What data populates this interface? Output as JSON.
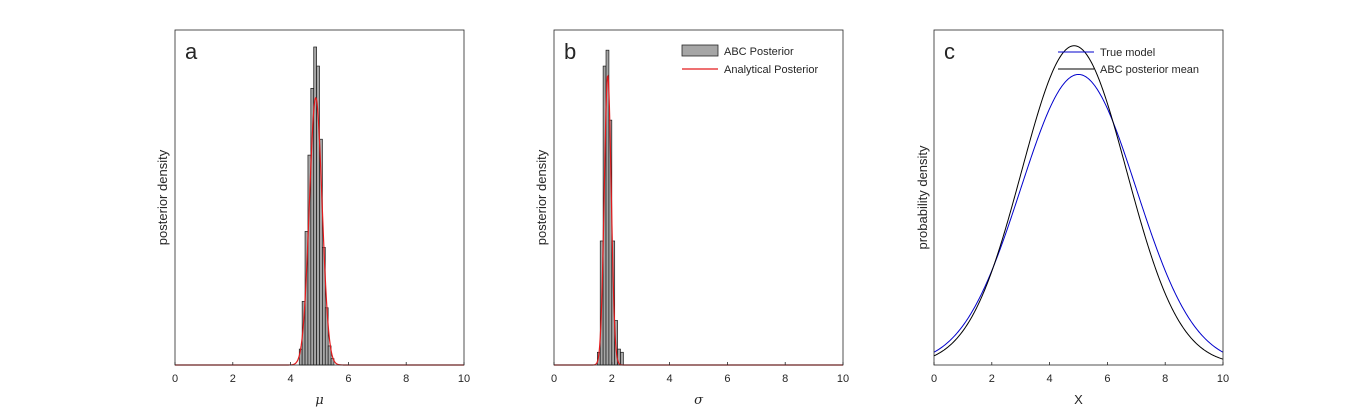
{
  "chart_data": [
    {
      "type": "bar",
      "panel_label": "a",
      "xlabel": "μ",
      "ylabel": "posterior density",
      "xlim": [
        0,
        10
      ],
      "xticks": [
        0,
        2,
        4,
        6,
        8,
        10
      ],
      "yticks": [],
      "histogram": {
        "bin_width": 0.1,
        "bin_starts": [
          4.3,
          4.4,
          4.5,
          4.6,
          4.7,
          4.8,
          4.9,
          5.0,
          5.1,
          5.2,
          5.3,
          5.4
        ],
        "values": [
          0.05,
          0.2,
          0.42,
          0.66,
          0.87,
          1.0,
          0.94,
          0.71,
          0.37,
          0.18,
          0.06,
          0.02
        ]
      },
      "curve": {
        "mean": 4.87,
        "sd": 0.22,
        "peak": 0.84,
        "color": "#e31a1c"
      },
      "grid": false,
      "legend": null
    },
    {
      "type": "bar",
      "panel_label": "b",
      "xlabel": "σ",
      "ylabel": "posterior density",
      "xlim": [
        0,
        10
      ],
      "xticks": [
        0,
        2,
        4,
        6,
        8,
        10
      ],
      "yticks": [],
      "histogram": {
        "bin_width": 0.1,
        "bin_starts": [
          1.5,
          1.6,
          1.7,
          1.8,
          1.9,
          2.0,
          2.1,
          2.2,
          2.3
        ],
        "values": [
          0.04,
          0.39,
          0.94,
          0.99,
          0.77,
          0.39,
          0.14,
          0.05,
          0.04
        ]
      },
      "curve": {
        "mean": 1.86,
        "sd": 0.12,
        "peak": 0.91,
        "color": "#e31a1c"
      },
      "grid": false,
      "legend": {
        "position": "top-right",
        "entries": [
          {
            "label": "ABC Posterior",
            "kind": "patch",
            "color": "#a6a6a6"
          },
          {
            "label": "Analytical Posterior",
            "kind": "line",
            "color": "#e31a1c"
          }
        ]
      }
    },
    {
      "type": "line",
      "panel_label": "c",
      "xlabel": "X",
      "ylabel": "probability density",
      "xlim": [
        0,
        10
      ],
      "xticks": [
        0,
        2,
        4,
        6,
        8,
        10
      ],
      "yticks": [],
      "ylim": [
        0,
        0.23
      ],
      "series": [
        {
          "name": "True model",
          "mean": 5.0,
          "sd": 2.0,
          "color": "#0000cc"
        },
        {
          "name": "ABC posterior mean",
          "mean": 4.85,
          "sd": 1.82,
          "color": "#000000"
        }
      ],
      "grid": false,
      "legend": {
        "position": "top-right"
      }
    }
  ]
}
